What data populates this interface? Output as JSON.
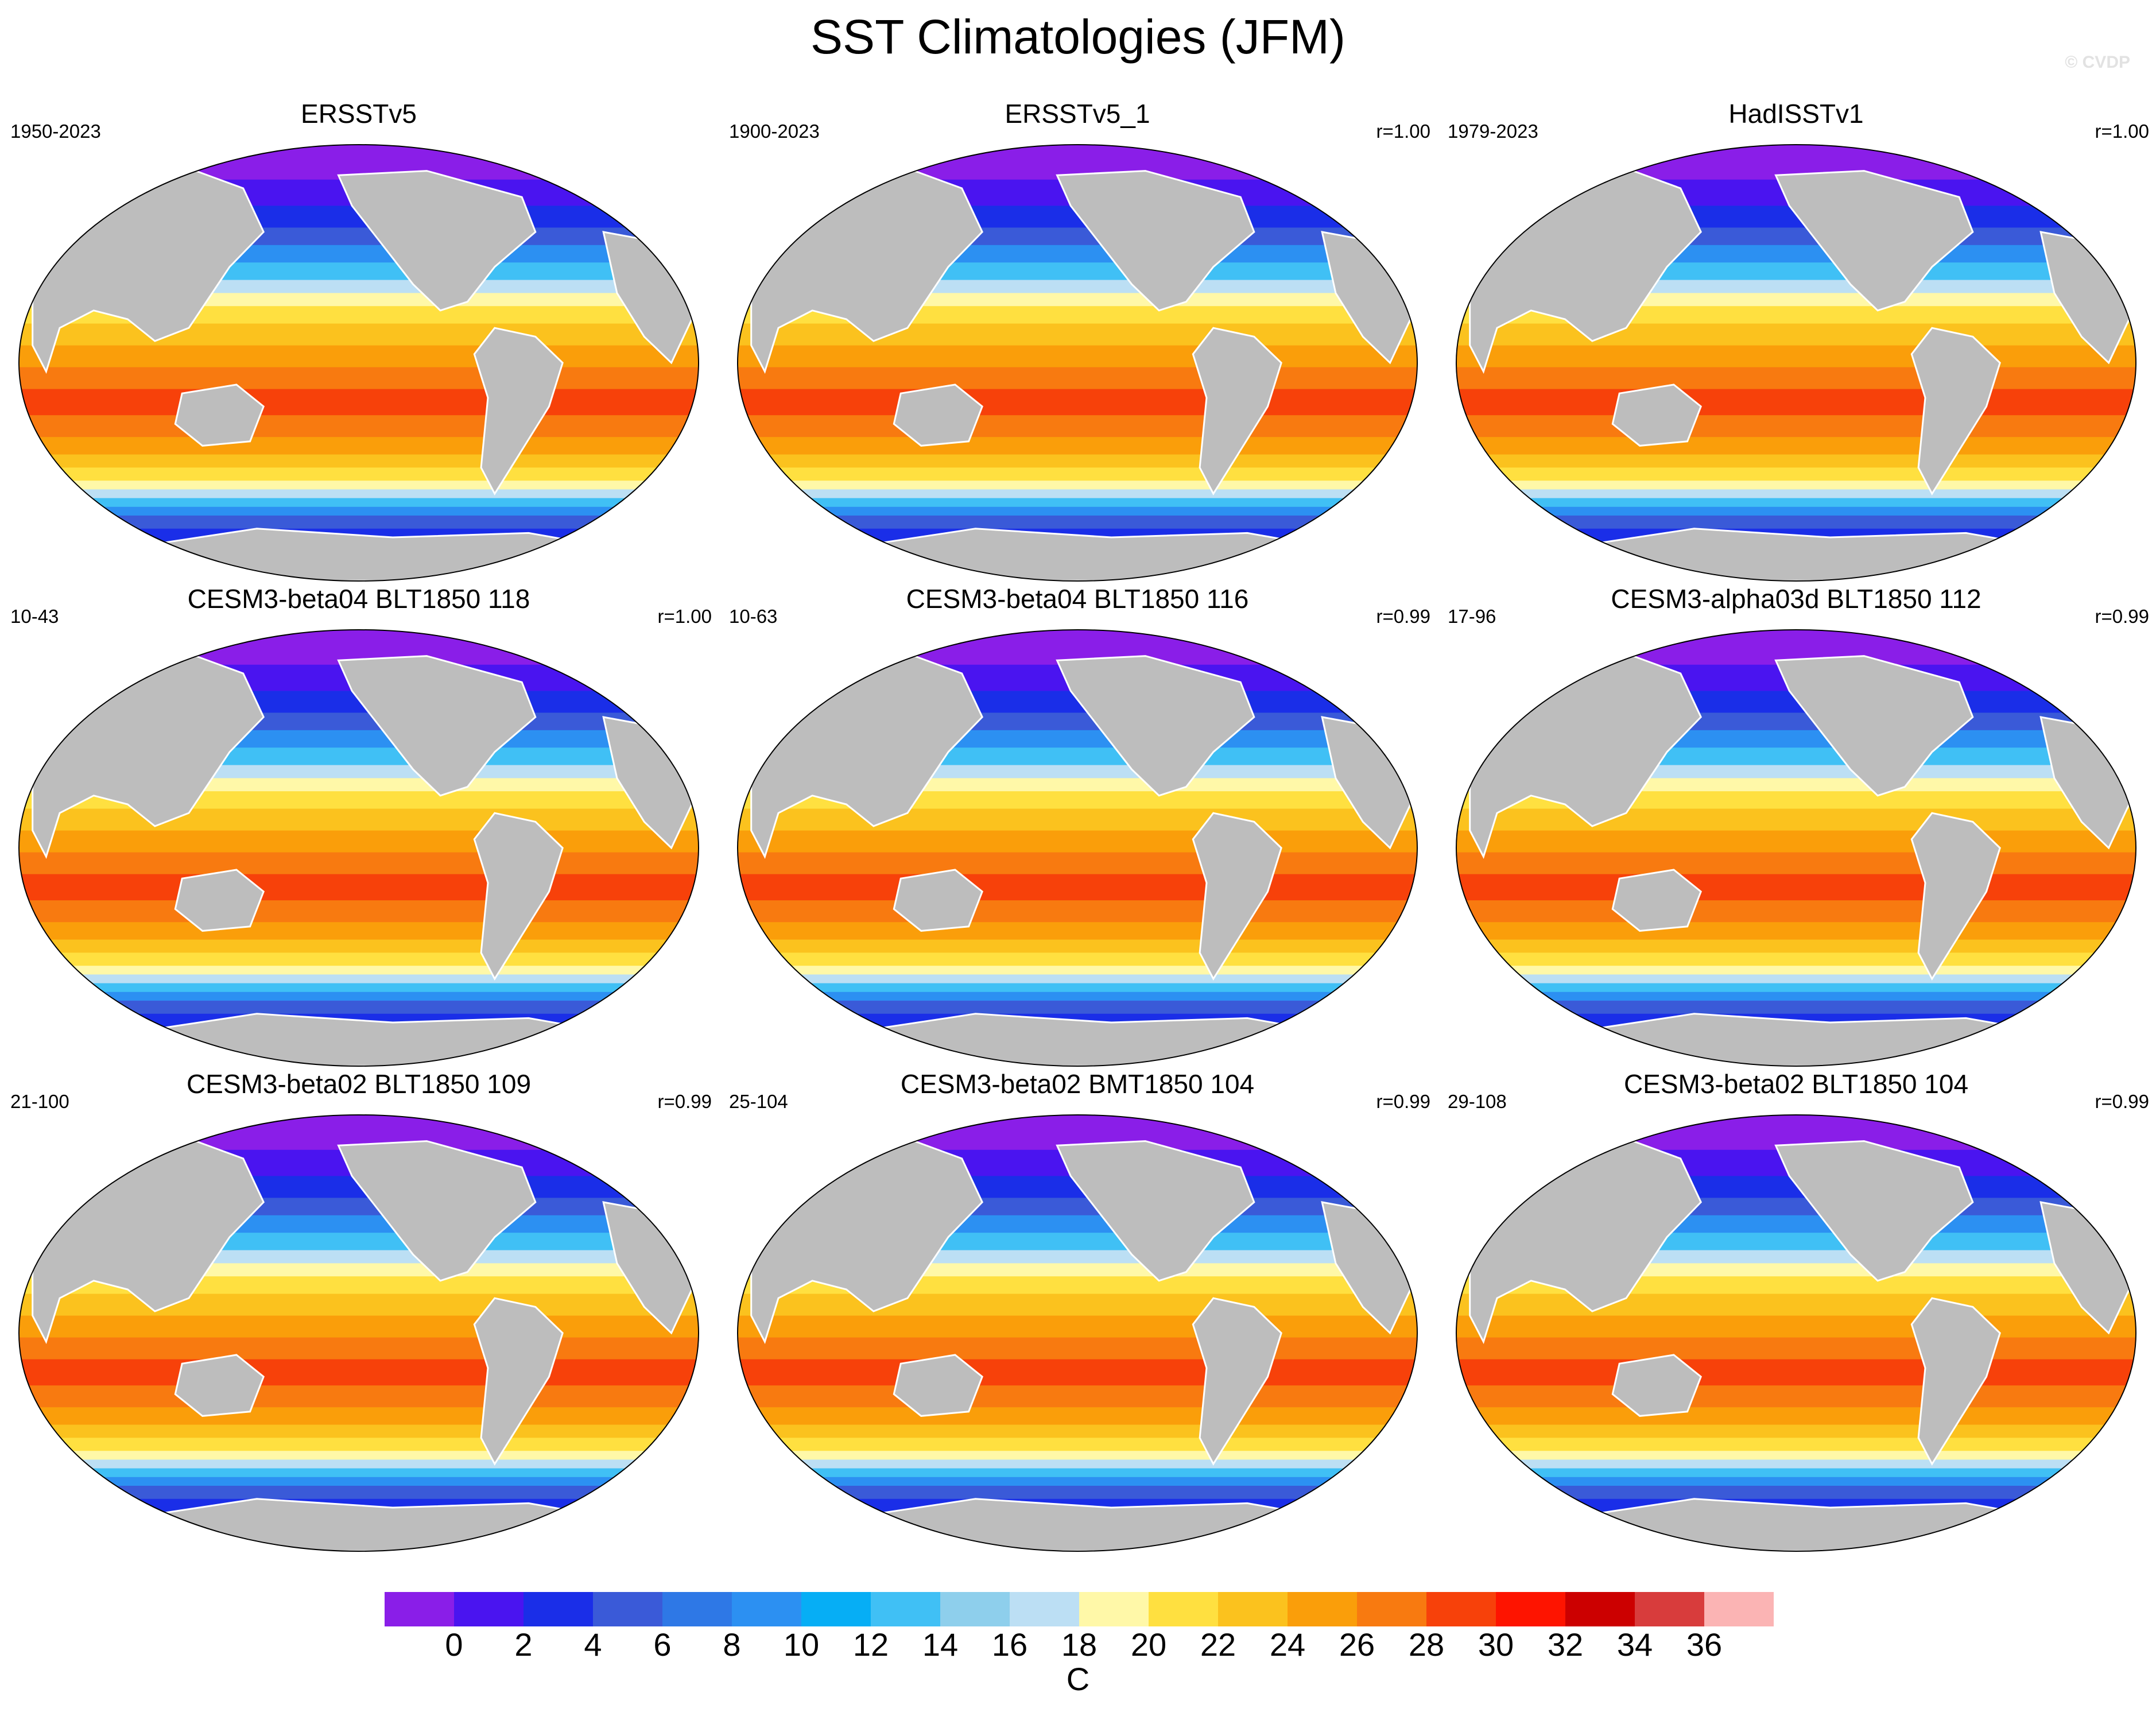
{
  "title": "SST Climatologies (JFM)",
  "credit": "© CVDP",
  "panels": [
    {
      "title": "ERSSTv5",
      "left": "1950-2023",
      "right": ""
    },
    {
      "title": "ERSSTv5_1",
      "left": "1900-2023",
      "right": "r=1.00"
    },
    {
      "title": "HadISSTv1",
      "left": "1979-2023",
      "right": "r=1.00"
    },
    {
      "title": "CESM3-beta04 BLT1850 118",
      "left": "10-43",
      "right": "r=1.00"
    },
    {
      "title": "CESM3-beta04 BLT1850 116",
      "left": "10-63",
      "right": "r=0.99"
    },
    {
      "title": "CESM3-alpha03d BLT1850 112",
      "left": "17-96",
      "right": "r=0.99"
    },
    {
      "title": "CESM3-beta02 BLT1850 109",
      "left": "21-100",
      "right": "r=0.99"
    },
    {
      "title": "CESM3-beta02 BMT1850 104",
      "left": "25-104",
      "right": "r=0.99"
    },
    {
      "title": "CESM3-beta02 BLT1850 104",
      "left": "29-108",
      "right": "r=0.99"
    }
  ],
  "colorbar": {
    "units": "C",
    "colors": [
      "#8a1ee8",
      "#4a14f0",
      "#1a2ee8",
      "#3a5ad8",
      "#2e78e6",
      "#2c90f2",
      "#06aef5",
      "#40c0f5",
      "#8ecfec",
      "#bcdff4",
      "#fff8a8",
      "#ffe040",
      "#fbc21e",
      "#fa9e0a",
      "#f87a10",
      "#f7410a",
      "#fe1400",
      "#cc0000",
      "#d83c3c",
      "#fbb4b4"
    ],
    "labels": [
      "0",
      "2",
      "4",
      "6",
      "8",
      "10",
      "12",
      "14",
      "16",
      "18",
      "20",
      "22",
      "24",
      "26",
      "28",
      "30",
      "32",
      "34",
      "36"
    ]
  }
}
